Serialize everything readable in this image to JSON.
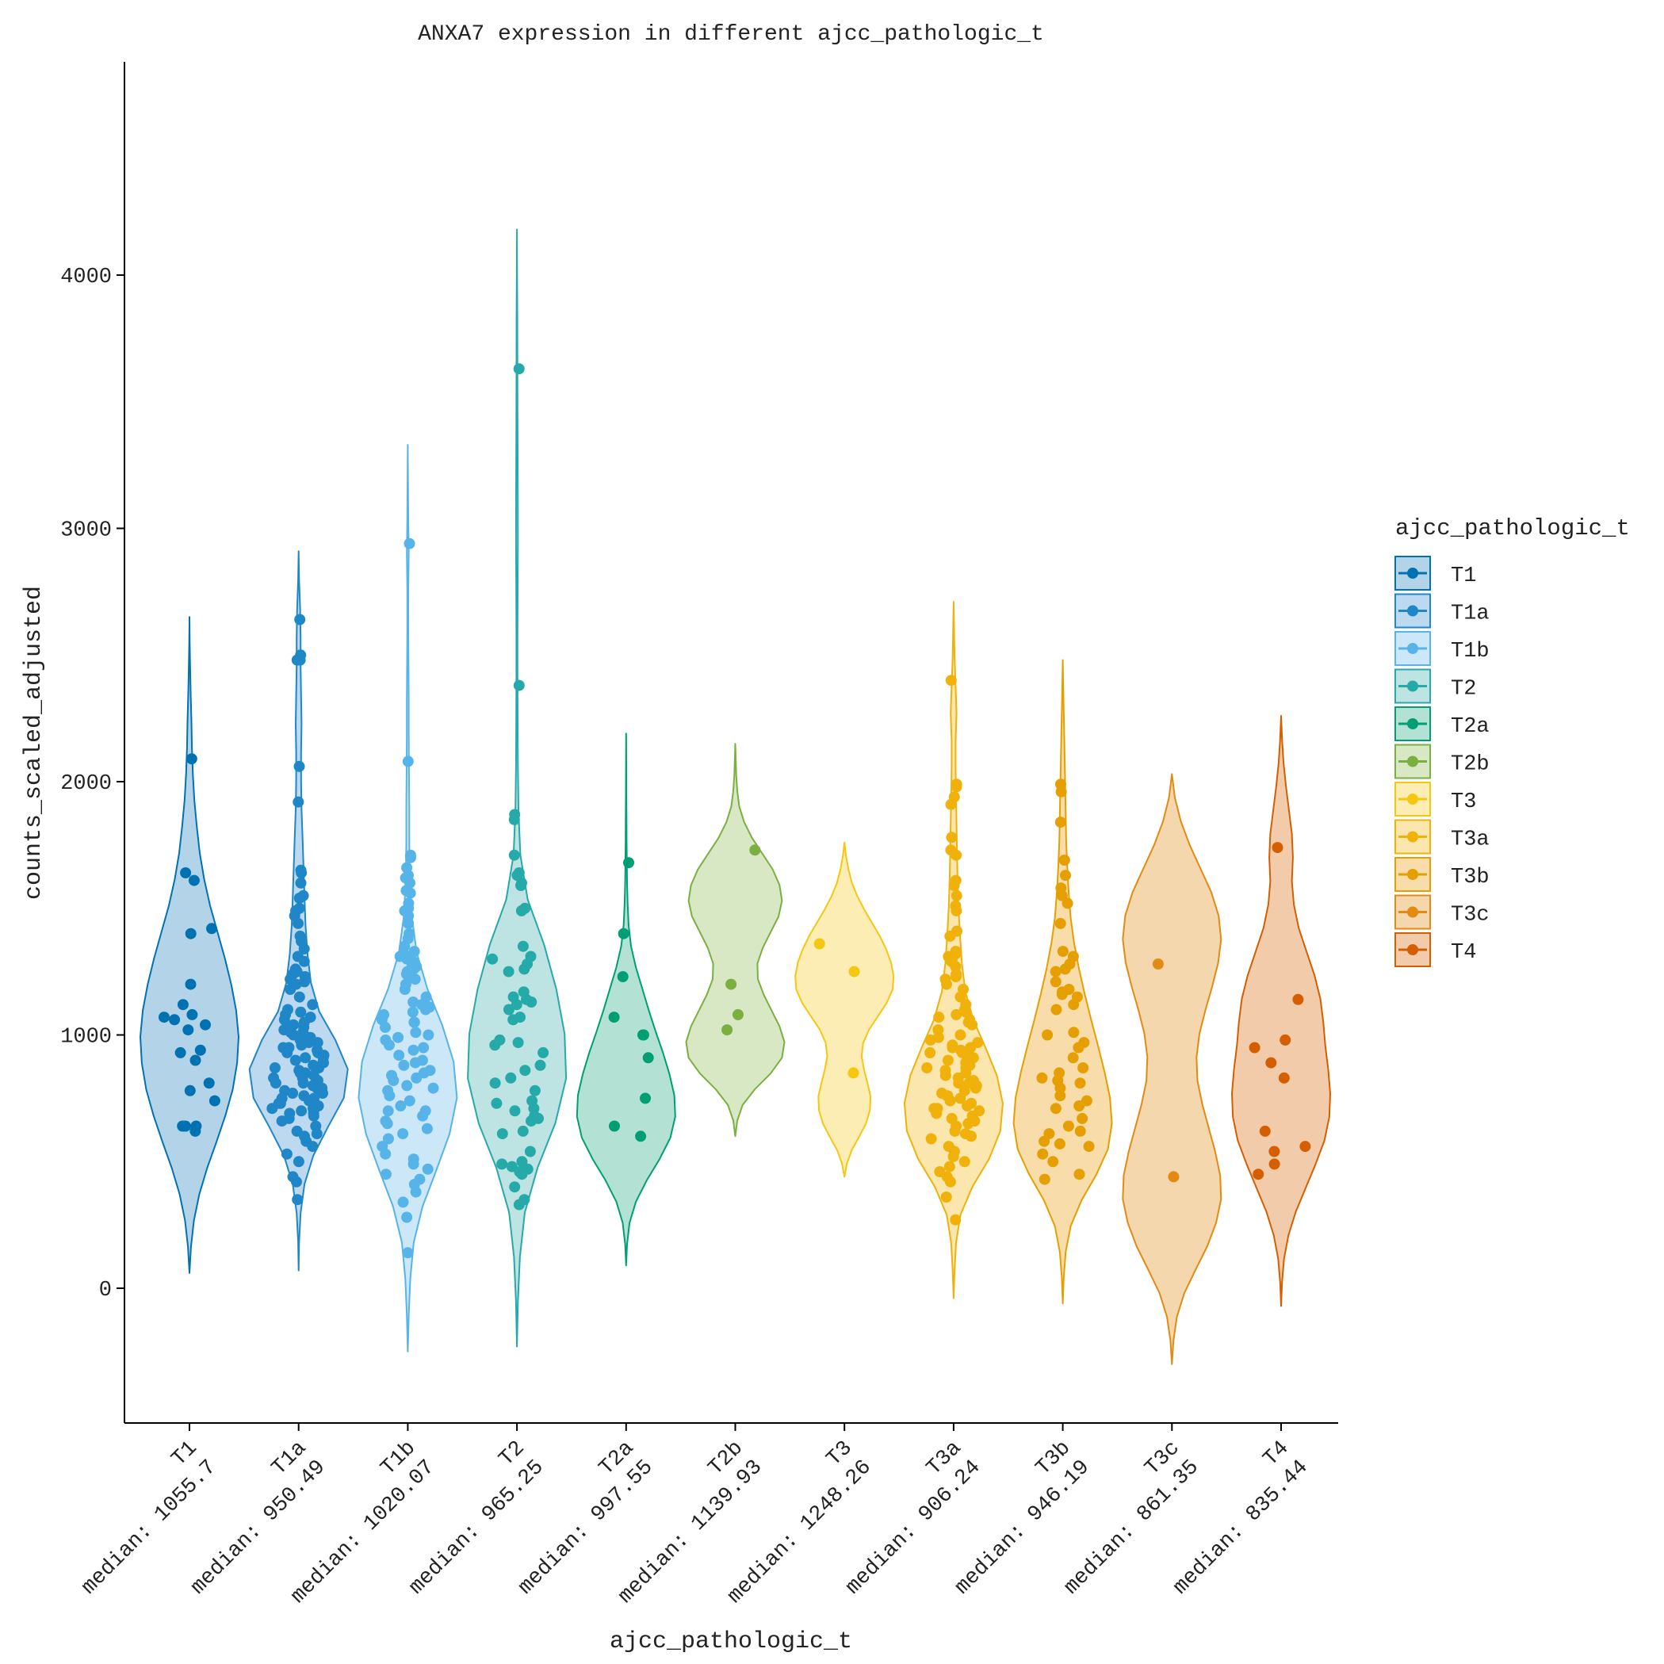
{
  "chart_data": {
    "type": "violin",
    "title": "ANXA7 expression in different ajcc_pathologic_t",
    "xlabel": "ajcc_pathologic_t",
    "ylabel": "counts_scaled_adjusted",
    "ylim": [
      -520,
      4800
    ],
    "yticks": [
      0,
      1000,
      2000,
      3000,
      4000
    ],
    "legend": {
      "title": "ajcc_pathologic_t",
      "position": "right"
    },
    "categories": [
      {
        "name": "T1",
        "median_label": "median: 1055.7",
        "color": "#0072b2",
        "fill": "#b3d4e8",
        "violin": {
          "min": 60,
          "max": 2650,
          "dens": [
            0,
            0.03,
            0.09,
            0.2,
            0.36,
            0.55,
            0.73,
            0.88,
            0.97,
            1,
            0.95,
            0.85,
            0.72,
            0.57,
            0.42,
            0.3,
            0.21,
            0.15,
            0.1,
            0.07,
            0.05,
            0.04,
            0.025,
            0.015,
            0.005,
            0
          ]
        },
        "points": [
          640,
          1420,
          1400,
          1610,
          2090,
          1640,
          1120,
          1040,
          1060,
          1070,
          1200,
          1080,
          1020,
          940,
          930,
          900,
          810,
          780,
          740,
          640,
          620,
          640
        ]
      },
      {
        "name": "T1a",
        "median_label": "median: 950.49",
        "color": "#1f86c8",
        "fill": "#bcd9ef",
        "violin": {
          "min": 70,
          "max": 2910,
          "dens": [
            0,
            0.01,
            0.04,
            0.12,
            0.3,
            0.6,
            0.92,
            1,
            0.75,
            0.42,
            0.25,
            0.18,
            0.14,
            0.12,
            0.1,
            0.08,
            0.06,
            0.05,
            0.05,
            0.06,
            0.05,
            0.04,
            0.04,
            0.03,
            0.01,
            0
          ]
        },
        "points": [
          2640,
          2480,
          2480,
          2500,
          2060,
          1920,
          1650,
          1640,
          1600,
          1550,
          1540,
          1500,
          1490,
          1470,
          1440,
          1390,
          1370,
          1340,
          1310,
          1290,
          1260,
          1250,
          1240,
          1230,
          1220,
          1210,
          1200,
          1180,
          1150,
          1120,
          1100,
          1090,
          1080,
          1070,
          1060,
          1050,
          1040,
          1030,
          1020,
          1010,
          1000,
          990,
          980,
          970,
          960,
          950,
          940,
          930,
          920,
          910,
          900,
          890,
          880,
          870,
          860,
          850,
          840,
          830,
          820,
          810,
          800,
          790,
          780,
          770,
          760,
          750,
          740,
          730,
          720,
          710,
          700,
          690,
          680,
          670,
          660,
          640,
          620,
          610,
          600,
          580,
          560,
          530,
          500,
          440,
          420,
          350,
          890,
          910,
          930,
          950,
          970,
          990,
          1010,
          1030,
          870,
          850,
          830,
          810,
          790,
          770,
          750,
          730,
          710,
          690
        ]
      },
      {
        "name": "T1b",
        "median_label": "median: 1020.07",
        "color": "#56b4e9",
        "fill": "#cce8f8",
        "violin": {
          "min": -250,
          "max": 3330,
          "dens": [
            0,
            0.02,
            0.05,
            0.12,
            0.3,
            0.58,
            0.85,
            1,
            0.93,
            0.7,
            0.4,
            0.18,
            0.08,
            0.04,
            0.03,
            0.03,
            0.025,
            0.02,
            0.02,
            0.015,
            0.01,
            0.01,
            0.02,
            0.01,
            0.005,
            0
          ]
        },
        "points": [
          2940,
          2080,
          1710,
          1700,
          1660,
          1630,
          1620,
          1600,
          1570,
          1560,
          1520,
          1500,
          1490,
          1470,
          1440,
          1400,
          1380,
          1350,
          1330,
          1320,
          1310,
          1300,
          1290,
          1270,
          1260,
          1250,
          1240,
          1230,
          1220,
          1200,
          1180,
          1150,
          1130,
          1120,
          1110,
          1100,
          1090,
          1080,
          1060,
          1050,
          1030,
          1010,
          1000,
          990,
          980,
          960,
          940,
          920,
          900,
          890,
          880,
          860,
          840,
          830,
          820,
          800,
          790,
          780,
          760,
          740,
          720,
          700,
          680,
          660,
          650,
          630,
          610,
          590,
          560,
          530,
          510,
          490,
          470,
          450,
          430,
          410,
          380,
          340,
          280,
          140,
          1270,
          1050,
          950,
          850,
          700
        ]
      },
      {
        "name": "T2",
        "median_label": "median: 965.25",
        "color": "#26a9a9",
        "fill": "#bde3e3",
        "violin": {
          "min": -230,
          "max": 4180,
          "dens": [
            0,
            0.02,
            0.06,
            0.16,
            0.42,
            0.78,
            1,
            0.97,
            0.8,
            0.55,
            0.22,
            0.07,
            0.03,
            0.02,
            0.015,
            0.012,
            0.012,
            0.015,
            0.02,
            0.018,
            0.015,
            0.012,
            0.01,
            0.008,
            0.004,
            0
          ]
        },
        "points": [
          3630,
          2380,
          1870,
          1850,
          1710,
          1640,
          1630,
          1600,
          1590,
          1500,
          1490,
          1350,
          1310,
          1300,
          1280,
          1260,
          1250,
          1170,
          1150,
          1140,
          1130,
          1120,
          1100,
          1070,
          1060,
          980,
          970,
          960,
          930,
          880,
          860,
          830,
          810,
          780,
          740,
          730,
          710,
          700,
          680,
          670,
          660,
          620,
          610,
          540,
          500,
          490,
          480,
          470,
          460,
          450,
          400,
          350,
          330
        ]
      },
      {
        "name": "T2a",
        "median_label": "median: 997.55",
        "color": "#009e73",
        "fill": "#b3e2d5",
        "violin": {
          "min": 90,
          "max": 2190,
          "dens": [
            0,
            0.02,
            0.07,
            0.2,
            0.42,
            0.68,
            0.9,
            1,
            0.98,
            0.88,
            0.75,
            0.6,
            0.46,
            0.33,
            0.2,
            0.1,
            0.05,
            0.03,
            0.02,
            0.015,
            0.01,
            0.008,
            0.005,
            0.003,
            0.001,
            0
          ]
        },
        "points": [
          1680,
          1400,
          1230,
          1070,
          1000,
          1000,
          910,
          750,
          640,
          600
        ]
      },
      {
        "name": "T2b",
        "median_label": "median: 1139.93",
        "color": "#79b03f",
        "fill": "#d8e8c5",
        "violin": {
          "min": 600,
          "max": 2150,
          "dens": [
            0,
            0.04,
            0.15,
            0.4,
            0.72,
            0.95,
            1,
            0.9,
            0.74,
            0.58,
            0.46,
            0.45,
            0.56,
            0.72,
            0.88,
            0.95,
            0.9,
            0.76,
            0.55,
            0.34,
            0.18,
            0.08,
            0.04,
            0.02,
            0.01,
            0
          ]
        },
        "points": [
          1730,
          1200,
          1080,
          1020
        ]
      },
      {
        "name": "T3",
        "median_label": "median: 1248.26",
        "color": "#f5c710",
        "fill": "#fbedb4",
        "violin": {
          "min": 440,
          "max": 1760,
          "dens": [
            0,
            0.05,
            0.15,
            0.3,
            0.44,
            0.52,
            0.53,
            0.47,
            0.4,
            0.35,
            0.38,
            0.5,
            0.68,
            0.86,
            0.98,
            1,
            0.95,
            0.85,
            0.72,
            0.56,
            0.4,
            0.26,
            0.15,
            0.08,
            0.03,
            0
          ]
        },
        "points": [
          1360,
          1250,
          850
        ]
      },
      {
        "name": "T3a",
        "median_label": "median: 906.24",
        "color": "#f0b20a",
        "fill": "#fbe6ad",
        "violin": {
          "min": -40,
          "max": 2710,
          "dens": [
            0,
            0.02,
            0.05,
            0.14,
            0.38,
            0.72,
            0.95,
            1,
            0.88,
            0.65,
            0.4,
            0.24,
            0.17,
            0.13,
            0.1,
            0.08,
            0.07,
            0.06,
            0.05,
            0.04,
            0.04,
            0.06,
            0.04,
            0.02,
            0.01,
            0
          ]
        },
        "points": [
          2400,
          1990,
          1980,
          1940,
          1910,
          1780,
          1730,
          1710,
          1610,
          1590,
          1550,
          1510,
          1490,
          1410,
          1390,
          1330,
          1320,
          1310,
          1300,
          1290,
          1270,
          1240,
          1230,
          1220,
          1200,
          1180,
          1150,
          1120,
          1100,
          1090,
          1080,
          1070,
          1060,
          1050,
          1040,
          1020,
          1000,
          990,
          980,
          970,
          960,
          950,
          940,
          930,
          920,
          910,
          900,
          890,
          880,
          870,
          860,
          850,
          840,
          830,
          820,
          810,
          800,
          790,
          780,
          770,
          760,
          750,
          740,
          730,
          720,
          710,
          700,
          690,
          680,
          670,
          660,
          650,
          640,
          620,
          610,
          600,
          590,
          560,
          540,
          520,
          500,
          480,
          460,
          440,
          420,
          360,
          270,
          930,
          950,
          870,
          810,
          760,
          710
        ]
      },
      {
        "name": "T3b",
        "median_label": "median: 946.19",
        "color": "#e69f00",
        "fill": "#f8dcaa",
        "violin": {
          "min": -60,
          "max": 2480,
          "dens": [
            0,
            0.02,
            0.06,
            0.16,
            0.38,
            0.68,
            0.92,
            1,
            0.96,
            0.85,
            0.72,
            0.58,
            0.45,
            0.33,
            0.23,
            0.16,
            0.12,
            0.09,
            0.07,
            0.06,
            0.05,
            0.04,
            0.03,
            0.02,
            0.01,
            0
          ]
        },
        "points": [
          1990,
          1960,
          1840,
          1690,
          1630,
          1580,
          1550,
          1520,
          1440,
          1330,
          1310,
          1280,
          1260,
          1250,
          1210,
          1180,
          1170,
          1160,
          1150,
          1120,
          1100,
          1010,
          1000,
          970,
          950,
          910,
          870,
          850,
          830,
          820,
          810,
          790,
          760,
          740,
          720,
          710,
          670,
          640,
          620,
          610,
          580,
          570,
          560,
          530,
          500,
          450,
          430
        ]
      },
      {
        "name": "T3c",
        "median_label": "median: 861.35",
        "color": "#e38a13",
        "fill": "#f5d7ae",
        "violin": {
          "min": -300,
          "max": 2030,
          "dens": [
            0,
            0.03,
            0.1,
            0.25,
            0.48,
            0.72,
            0.9,
            1,
            0.98,
            0.88,
            0.75,
            0.62,
            0.52,
            0.5,
            0.56,
            0.68,
            0.82,
            0.94,
            1,
            0.95,
            0.8,
            0.58,
            0.36,
            0.18,
            0.06,
            0
          ]
        },
        "points": [
          1280,
          440
        ]
      },
      {
        "name": "T4",
        "median_label": "median: 835.44",
        "color": "#d55e00",
        "fill": "#f2ccaa",
        "violin": {
          "min": -70,
          "max": 2260,
          "dens": [
            0,
            0.02,
            0.06,
            0.15,
            0.3,
            0.5,
            0.7,
            0.88,
            0.98,
            1,
            0.96,
            0.9,
            0.86,
            0.8,
            0.68,
            0.52,
            0.36,
            0.26,
            0.22,
            0.24,
            0.22,
            0.16,
            0.1,
            0.05,
            0.02,
            0
          ]
        },
        "points": [
          1740,
          1140,
          980,
          950,
          890,
          830,
          620,
          560,
          540,
          490,
          450
        ]
      }
    ]
  }
}
